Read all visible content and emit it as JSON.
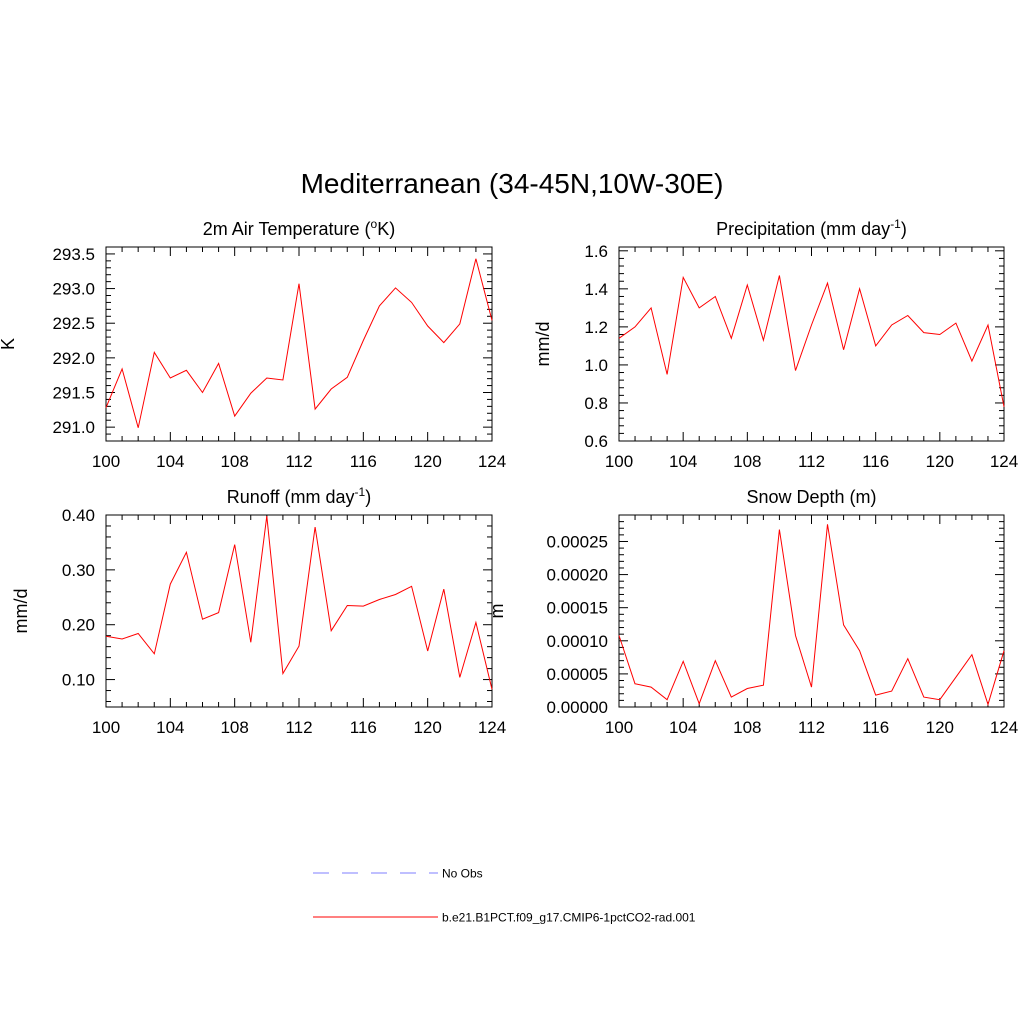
{
  "title": "Mediterranean (34-45N,10W-30E)",
  "legend": [
    {
      "label": "No Obs",
      "color": "#9999ff",
      "style": "dashed"
    },
    {
      "label": "b.e21.B1PCT.f09_g17.CMIP6-1pctCO2-rad.001",
      "color": "#ff0000",
      "style": "solid"
    }
  ],
  "chart_data": [
    {
      "type": "line",
      "title": "2m Air Temperature (",
      "title_sup": "o",
      "title_tail": "K)",
      "ylabel": "K",
      "xlim": [
        100,
        124
      ],
      "ylim": [
        290.8,
        293.6
      ],
      "xticks": [
        100,
        104,
        108,
        112,
        116,
        120,
        124
      ],
      "yticks": [
        291.0,
        291.5,
        292.0,
        292.5,
        293.0,
        293.5
      ],
      "ytick_labels": [
        "291.0",
        "291.5",
        "292.0",
        "292.5",
        "293.0",
        "293.5"
      ],
      "color": "#ff0000",
      "x": [
        100,
        101,
        102,
        103,
        104,
        105,
        106,
        107,
        108,
        109,
        110,
        111,
        112,
        113,
        114,
        115,
        116,
        117,
        118,
        119,
        120,
        121,
        122,
        123,
        124
      ],
      "values": [
        291.28,
        291.84,
        290.99,
        292.08,
        291.71,
        291.82,
        291.5,
        291.92,
        291.16,
        291.49,
        291.71,
        291.68,
        293.07,
        291.26,
        291.55,
        291.72,
        292.25,
        292.75,
        293.01,
        292.8,
        292.46,
        292.22,
        292.49,
        293.43,
        292.54
      ]
    },
    {
      "type": "line",
      "title": "Precipitation (mm day",
      "title_sup": "-1",
      "title_tail": ")",
      "ylabel": "mm/d",
      "xlim": [
        100,
        124
      ],
      "ylim": [
        0.6,
        1.62
      ],
      "xticks": [
        100,
        104,
        108,
        112,
        116,
        120,
        124
      ],
      "yticks": [
        0.6,
        0.8,
        1.0,
        1.2,
        1.4,
        1.6
      ],
      "ytick_labels": [
        "0.6",
        "0.8",
        "1.0",
        "1.2",
        "1.4",
        "1.6"
      ],
      "color": "#ff0000",
      "x": [
        100,
        101,
        102,
        103,
        104,
        105,
        106,
        107,
        108,
        109,
        110,
        111,
        112,
        113,
        114,
        115,
        116,
        117,
        118,
        119,
        120,
        121,
        122,
        123,
        124
      ],
      "values": [
        1.14,
        1.2,
        1.3,
        0.95,
        1.46,
        1.3,
        1.36,
        1.14,
        1.42,
        1.13,
        1.47,
        0.97,
        1.21,
        1.43,
        1.08,
        1.4,
        1.1,
        1.21,
        1.26,
        1.17,
        1.16,
        1.22,
        1.02,
        1.21,
        0.78
      ]
    },
    {
      "type": "line",
      "title": "Runoff (mm day",
      "title_sup": "-1",
      "title_tail": ")",
      "ylabel": "mm/d",
      "xlim": [
        100,
        124
      ],
      "ylim": [
        0.05,
        0.4
      ],
      "xticks": [
        100,
        104,
        108,
        112,
        116,
        120,
        124
      ],
      "yticks": [
        0.1,
        0.2,
        0.3,
        0.4
      ],
      "ytick_labels": [
        "0.10",
        "0.20",
        "0.30",
        "0.40"
      ],
      "color": "#ff0000",
      "x": [
        100,
        101,
        102,
        103,
        104,
        105,
        106,
        107,
        108,
        109,
        110,
        111,
        112,
        113,
        114,
        115,
        116,
        117,
        118,
        119,
        120,
        121,
        122,
        123,
        124
      ],
      "values": [
        0.179,
        0.174,
        0.184,
        0.147,
        0.274,
        0.332,
        0.21,
        0.222,
        0.346,
        0.168,
        0.398,
        0.111,
        0.161,
        0.378,
        0.189,
        0.235,
        0.234,
        0.246,
        0.255,
        0.27,
        0.152,
        0.265,
        0.104,
        0.204,
        0.082
      ]
    },
    {
      "type": "line",
      "title": "Snow Depth (m)",
      "title_sup": "",
      "title_tail": "",
      "ylabel": "m",
      "xlim": [
        100,
        124
      ],
      "ylim": [
        0,
        0.00029
      ],
      "xticks": [
        100,
        104,
        108,
        112,
        116,
        120,
        124
      ],
      "yticks": [
        0,
        5e-05,
        0.0001,
        0.00015,
        0.0002,
        0.00025
      ],
      "ytick_labels": [
        "0.00000",
        "0.00005",
        "0.00010",
        "0.00015",
        "0.00020",
        "0.00025"
      ],
      "color": "#ff0000",
      "x": [
        100,
        101,
        102,
        103,
        104,
        105,
        106,
        107,
        108,
        109,
        110,
        111,
        112,
        113,
        114,
        115,
        116,
        117,
        118,
        119,
        120,
        121,
        122,
        123,
        124
      ],
      "values": [
        0.000108,
        3.5e-05,
        3e-05,
        1.1e-05,
        6.9e-05,
        5e-06,
        7e-05,
        1.5e-05,
        2.8e-05,
        3.3e-05,
        0.000268,
        0.000108,
        3e-05,
        0.000276,
        0.000124,
        8.5e-05,
        1.8e-05,
        2.4e-05,
        7.3e-05,
        1.5e-05,
        1.1e-05,
        4.5e-05,
        7.9e-05,
        4e-06,
        8.5e-05
      ]
    }
  ]
}
